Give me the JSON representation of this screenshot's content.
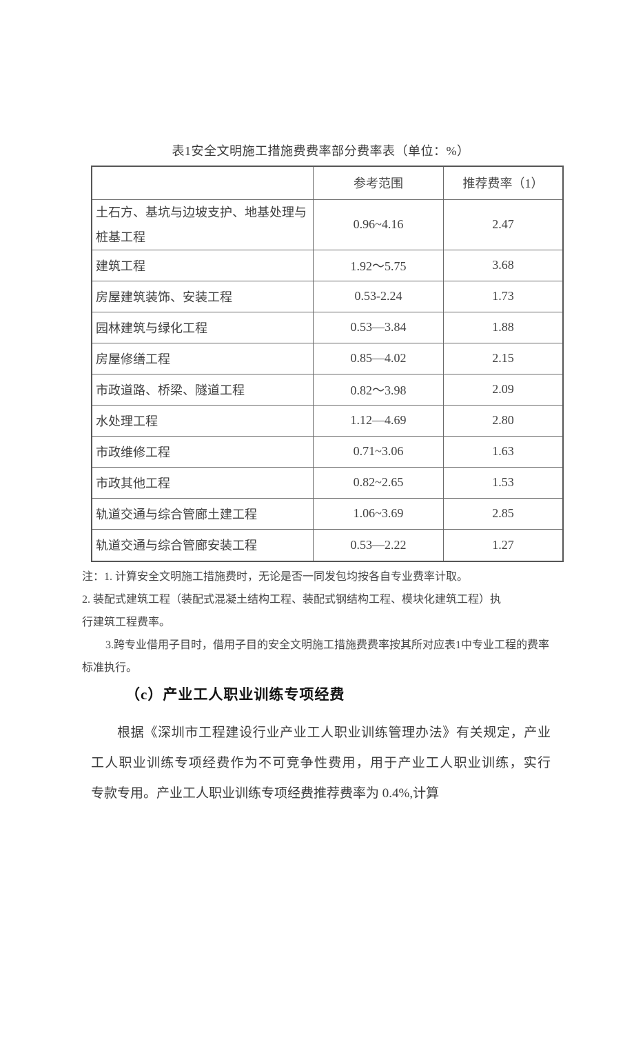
{
  "page": {
    "title": "表1安全文明施工措施费费率部分费率表（单位：%）"
  },
  "table": {
    "col_headers": {
      "project": "",
      "range": "参考范围",
      "rate": "推荐费率（1）"
    },
    "rows": [
      {
        "project": "土石方、基坑与边坡支护、地基处理与桩基工程",
        "range": "0.96~4.16",
        "rate": "2.47"
      },
      {
        "project": "建筑工程",
        "range": "1.92～5.75",
        "rate": "3.68"
      },
      {
        "project": "房屋建筑装饰、安装工程",
        "range": "0.53-2.24",
        "rate": "1.73"
      },
      {
        "project": "园林建筑与绿化工程",
        "range": "0.53—3.84",
        "rate": "1.88"
      },
      {
        "project": "房屋修缮工程",
        "range": "0.85—4.02",
        "rate": "2.15"
      },
      {
        "project": "市政道路、桥梁、隧道工程",
        "range": "0.82～3.98",
        "rate": "2.09"
      },
      {
        "project": "水处理工程",
        "range": "1.12—4.69",
        "rate": "2.80"
      },
      {
        "project": "市政维修工程",
        "range": "0.71~3.06",
        "rate": "1.63"
      },
      {
        "project": "市政其他工程",
        "range": "0.82~2.65",
        "rate": "1.53"
      },
      {
        "project": "轨道交通与综合管廊土建工程",
        "range": "1.06~3.69",
        "rate": "2.85"
      },
      {
        "project": "轨道交通与综合管廊安装工程",
        "range": "0.53—2.22",
        "rate": "1.27"
      }
    ]
  },
  "notes": {
    "line1": "注：1. 计算安全文明施工措施费时，无论是否一同发包均按各自专业费率计取。",
    "line2": "2. 装配式建筑工程（装配式混凝土结构工程、装配式钢结构工程、模块化建筑工程）执",
    "line3": "行建筑工程费率。",
    "line4": "3.跨专业借用子目时，借用子目的安全文明施工措施费费率按其所对应表1中专业工程的费率",
    "line5": "标准执行。"
  },
  "section": {
    "heading": "（c）产业工人职业训练专项经费",
    "para_line1": "根据《深圳市工程建设行业产业工人职业训练管理办法》有关规定，产业",
    "para_line2": "工人职业训练专项经费作为不可竞争性费用，用于产业工人职业训练，实行",
    "para_line3": "专款专用。产业工人职业训练专项经费推荐费率为 0.4%,计算"
  },
  "colors": {
    "background": "#ffffff",
    "body_text": "#3f3f3f",
    "heading_text": "#131313",
    "table_border": "#6a6a6a",
    "table_outer_border": "#565656"
  }
}
